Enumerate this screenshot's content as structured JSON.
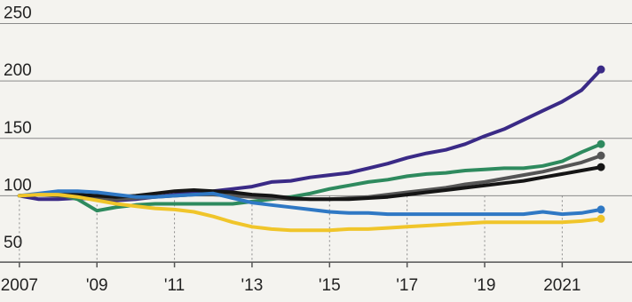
{
  "chart_data": {
    "type": "line",
    "title": "",
    "xlabel": "",
    "ylabel": "",
    "xlim": [
      2006.5,
      2022.8
    ],
    "ylim": [
      40,
      255
    ],
    "y_ticks": [
      50,
      100,
      150,
      200,
      250
    ],
    "x_ticks": [
      {
        "value": 2007,
        "label": "2007"
      },
      {
        "value": 2009,
        "label": "'09"
      },
      {
        "value": 2011,
        "label": "'11"
      },
      {
        "value": 2013,
        "label": "'13"
      },
      {
        "value": 2015,
        "label": "'15"
      },
      {
        "value": 2017,
        "label": "'17"
      },
      {
        "value": 2019,
        "label": "'19"
      },
      {
        "value": 2021,
        "label": "2021"
      }
    ],
    "grid": true,
    "legend": "none",
    "series": [
      {
        "color": "#3a2a86",
        "x": [
          2007,
          2007.5,
          2008,
          2008.5,
          2009,
          2009.5,
          2010,
          2010.5,
          2011,
          2011.5,
          2012,
          2012.5,
          2013,
          2013.5,
          2014,
          2014.5,
          2015,
          2015.5,
          2016,
          2016.5,
          2017,
          2017.5,
          2018,
          2018.5,
          2019,
          2019.5,
          2020,
          2020.5,
          2021,
          2021.5,
          2022
        ],
        "values": [
          100,
          97,
          97,
          98,
          97,
          96,
          97,
          99,
          101,
          103,
          104,
          106,
          108,
          112,
          113,
          116,
          118,
          120,
          124,
          128,
          133,
          137,
          140,
          145,
          152,
          158,
          166,
          174,
          182,
          192,
          210
        ]
      },
      {
        "color": "#2e8a5e",
        "x": [
          2007,
          2007.5,
          2008,
          2008.5,
          2009,
          2009.5,
          2010,
          2010.5,
          2011,
          2011.5,
          2012,
          2012.5,
          2013,
          2013.5,
          2014,
          2014.5,
          2015,
          2015.5,
          2016,
          2016.5,
          2017,
          2017.5,
          2018,
          2018.5,
          2019,
          2019.5,
          2020,
          2020.5,
          2021,
          2021.5,
          2022
        ],
        "values": [
          100,
          101,
          101,
          97,
          87,
          90,
          92,
          93,
          93,
          93,
          93,
          93,
          95,
          97,
          99,
          102,
          106,
          109,
          112,
          114,
          117,
          119,
          120,
          122,
          123,
          124,
          124,
          126,
          130,
          138,
          145
        ]
      },
      {
        "color": "#555555",
        "x": [
          2007,
          2007.5,
          2008,
          2008.5,
          2009,
          2009.5,
          2010,
          2010.5,
          2011,
          2011.5,
          2012,
          2012.5,
          2013,
          2013.5,
          2014,
          2014.5,
          2015,
          2015.5,
          2016,
          2016.5,
          2017,
          2017.5,
          2018,
          2018.5,
          2019,
          2019.5,
          2020,
          2020.5,
          2021,
          2021.5,
          2022
        ],
        "values": [
          100,
          101,
          100,
          99,
          98,
          97,
          98,
          99,
          100,
          101,
          101,
          100,
          99,
          98,
          97,
          97,
          97,
          98,
          99,
          101,
          103,
          105,
          107,
          110,
          112,
          115,
          118,
          121,
          125,
          129,
          135
        ]
      },
      {
        "color": "#151515",
        "x": [
          2007,
          2007.5,
          2008,
          2008.5,
          2009,
          2009.5,
          2010,
          2010.5,
          2011,
          2011.5,
          2012,
          2012.5,
          2013,
          2013.5,
          2014,
          2014.5,
          2015,
          2015.5,
          2016,
          2016.5,
          2017,
          2017.5,
          2018,
          2018.5,
          2019,
          2019.5,
          2020,
          2020.5,
          2021,
          2021.5,
          2022
        ],
        "values": [
          100,
          101,
          101,
          101,
          100,
          99,
          100,
          102,
          104,
          105,
          104,
          103,
          101,
          100,
          98,
          97,
          97,
          97,
          98,
          99,
          101,
          103,
          105,
          107,
          109,
          111,
          113,
          116,
          119,
          122,
          125
        ]
      },
      {
        "color": "#2f78c4",
        "x": [
          2007,
          2007.5,
          2008,
          2008.5,
          2009,
          2009.5,
          2010,
          2010.5,
          2011,
          2011.5,
          2012,
          2012.5,
          2013,
          2013.5,
          2014,
          2014.5,
          2015,
          2015.5,
          2016,
          2016.5,
          2017,
          2017.5,
          2018,
          2018.5,
          2019,
          2019.5,
          2020,
          2020.5,
          2021,
          2021.5,
          2022
        ],
        "values": [
          100,
          102,
          104,
          104,
          103,
          101,
          99,
          99,
          100,
          101,
          102,
          98,
          94,
          92,
          90,
          88,
          86,
          85,
          85,
          84,
          84,
          84,
          84,
          84,
          84,
          84,
          84,
          86,
          84,
          85,
          88
        ]
      },
      {
        "color": "#f0c52a",
        "x": [
          2007,
          2007.5,
          2008,
          2008.5,
          2009,
          2009.5,
          2010,
          2010.5,
          2011,
          2011.5,
          2012,
          2012.5,
          2013,
          2013.5,
          2014,
          2014.5,
          2015,
          2015.5,
          2016,
          2016.5,
          2017,
          2017.5,
          2018,
          2018.5,
          2019,
          2019.5,
          2020,
          2020.5,
          2021,
          2021.5,
          2022
        ],
        "values": [
          100,
          101,
          101,
          99,
          96,
          93,
          91,
          89,
          88,
          86,
          82,
          77,
          73,
          71,
          70,
          70,
          70,
          71,
          71,
          72,
          73,
          74,
          75,
          76,
          77,
          77,
          77,
          77,
          77,
          78,
          80
        ]
      }
    ]
  }
}
